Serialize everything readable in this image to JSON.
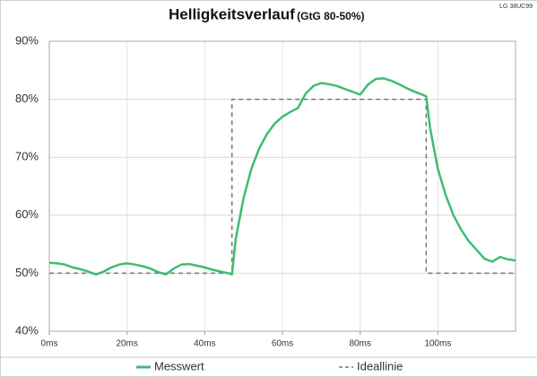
{
  "chart_data": {
    "type": "line",
    "title": "Helligkeitsverlauf",
    "subtitle": "(GtG 80-50%)",
    "annotation": "LG 38UC99",
    "xlim": [
      0,
      120
    ],
    "xticks": [
      {
        "value": 0,
        "label": "0ms"
      },
      {
        "value": 20,
        "label": "20ms"
      },
      {
        "value": 40,
        "label": "40ms"
      },
      {
        "value": 60,
        "label": "60ms"
      },
      {
        "value": 80,
        "label": "80ms"
      },
      {
        "value": 100,
        "label": "100ms"
      }
    ],
    "ylim": [
      40,
      90
    ],
    "yticks": [
      {
        "value": 40,
        "label": "40%"
      },
      {
        "value": 50,
        "label": "50%"
      },
      {
        "value": 60,
        "label": "60%"
      },
      {
        "value": 70,
        "label": "70%"
      },
      {
        "value": 80,
        "label": "80%"
      },
      {
        "value": 90,
        "label": "90%"
      }
    ],
    "grid": true,
    "legend": "bottom",
    "series": [
      {
        "name": "Messwert",
        "color": "#3dbd72",
        "line_style": "solid",
        "x": [
          0,
          2,
          4,
          6,
          8,
          10,
          12,
          14,
          16,
          18,
          20,
          22,
          24,
          26,
          28,
          30,
          32,
          34,
          36,
          38,
          40,
          42,
          44,
          46,
          47,
          48,
          50,
          52,
          54,
          56,
          58,
          60,
          62,
          64,
          66,
          68,
          70,
          72,
          74,
          76,
          78,
          80,
          82,
          84,
          86,
          88,
          90,
          92,
          94,
          96,
          97,
          98,
          100,
          102,
          104,
          106,
          108,
          110,
          112,
          114,
          116,
          118,
          120
        ],
        "values": [
          51.8,
          51.7,
          51.5,
          51,
          50.7,
          50.3,
          49.8,
          50.3,
          51,
          51.5,
          51.7,
          51.5,
          51.2,
          50.8,
          50.2,
          49.8,
          50.8,
          51.5,
          51.6,
          51.3,
          51,
          50.6,
          50.3,
          50,
          49.8,
          56,
          63,
          68,
          71.5,
          74,
          75.8,
          77,
          77.8,
          78.5,
          81,
          82.3,
          82.8,
          82.6,
          82.3,
          81.8,
          81.3,
          80.8,
          82.5,
          83.5,
          83.6,
          83.2,
          82.6,
          81.9,
          81.3,
          80.8,
          80.5,
          75,
          68,
          63.5,
          60,
          57.5,
          55.5,
          54,
          52.5,
          52,
          52.8,
          52.4,
          52.2
        ]
      },
      {
        "name": "Ideallinie",
        "color": "#777777",
        "line_style": "dashed",
        "x": [
          0,
          47,
          47,
          97,
          97,
          120
        ],
        "values": [
          50,
          50,
          80,
          80,
          50,
          50
        ]
      }
    ]
  }
}
